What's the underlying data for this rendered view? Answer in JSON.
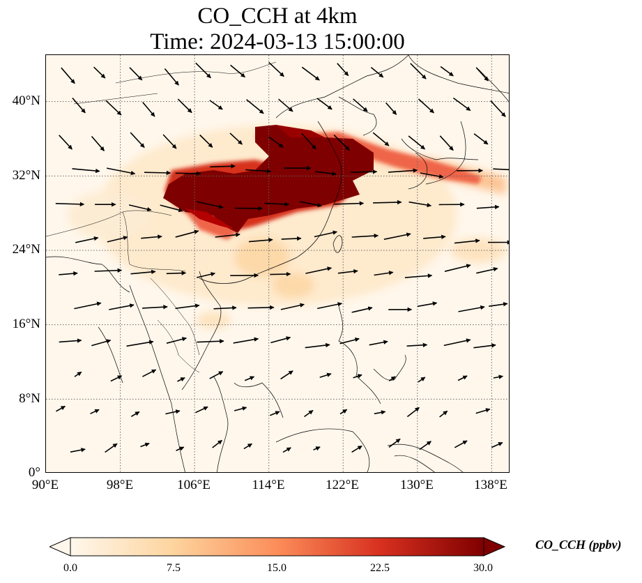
{
  "title": {
    "line1": "CO_CCH at 4km",
    "line2": "Time: 2024-03-13 15:00:00"
  },
  "map": {
    "extent": {
      "lon_min": 90,
      "lon_max": 140,
      "lat_min": 0,
      "lat_max": 45
    },
    "lat_ticks": [
      {
        "value": 40,
        "label": "40°N"
      },
      {
        "value": 32,
        "label": "32°N"
      },
      {
        "value": 24,
        "label": "24°N"
      },
      {
        "value": 16,
        "label": "16°N"
      },
      {
        "value": 8,
        "label": "8°N"
      },
      {
        "value": 0,
        "label": "0°"
      }
    ],
    "lon_ticks": [
      {
        "value": 90,
        "label": "90°E"
      },
      {
        "value": 98,
        "label": "98°E"
      },
      {
        "value": 106,
        "label": "106°E"
      },
      {
        "value": 114,
        "label": "114°E"
      },
      {
        "value": 122,
        "label": "122°E"
      },
      {
        "value": 130,
        "label": "130°E"
      },
      {
        "value": 138,
        "label": "138°E"
      }
    ],
    "gridlines": true,
    "background_color": "#fff7ec",
    "plume_core_color": "#7f0000"
  },
  "colorbar": {
    "label": "CO_CCH (ppbv)",
    "min": 0,
    "max": 30,
    "ticks": [
      "0.0",
      "7.5",
      "15.0",
      "22.5",
      "30.0"
    ],
    "colormap": [
      "#fff7ec",
      "#fdd49e",
      "#fc8d59",
      "#d7301f",
      "#7f0000"
    ],
    "extend": "both"
  }
}
